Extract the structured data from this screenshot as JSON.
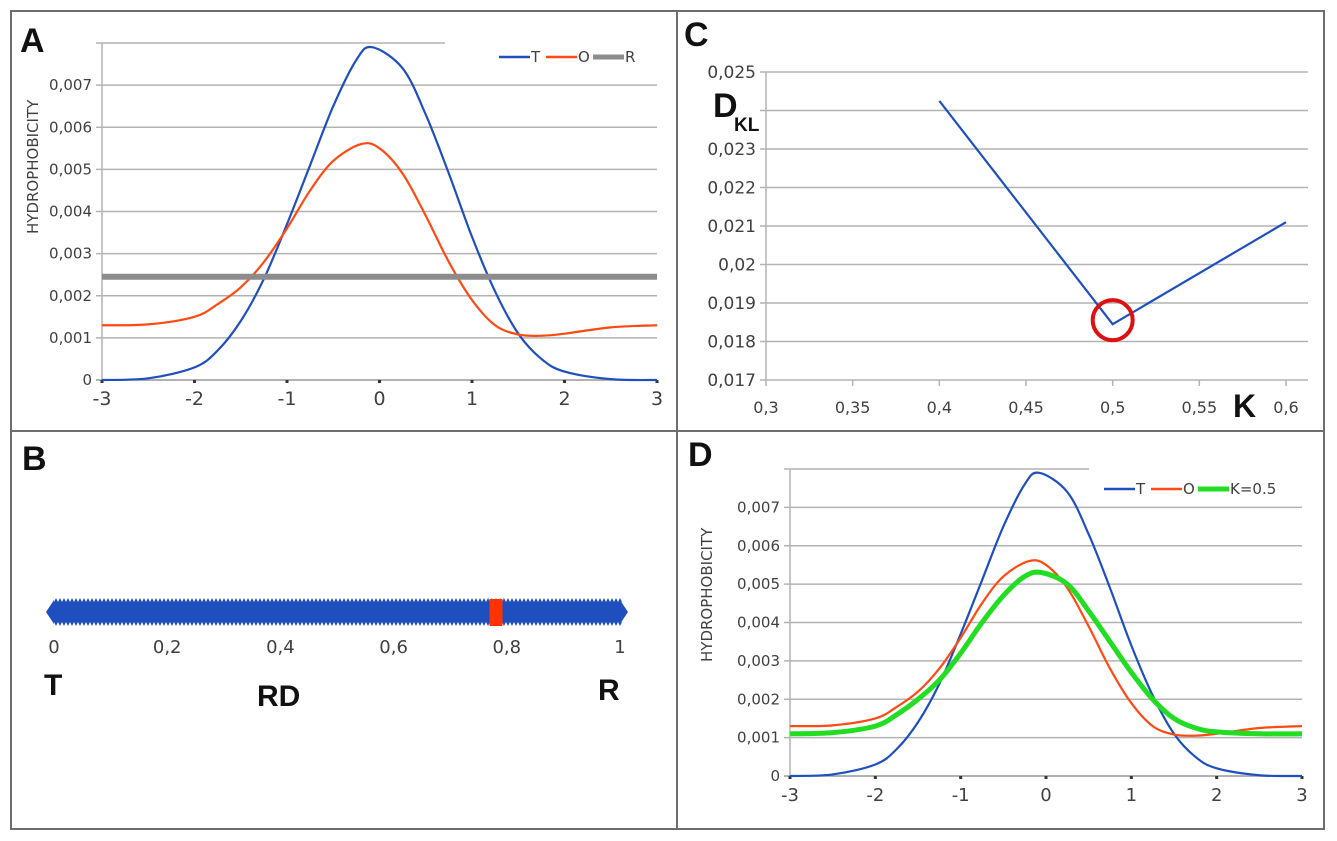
{
  "figure": {
    "panels": [
      "A",
      "B",
      "C",
      "D"
    ]
  },
  "colors": {
    "T": "#1f4fbf",
    "O": "#ff4a12",
    "R": "#8c8c8c",
    "K": "#22dd22",
    "marker": "#ff3300",
    "circle": "#dd1111",
    "grid": "#b3b3b3",
    "axis": "#999999"
  },
  "chart_data": [
    {
      "panel": "A",
      "type": "line",
      "title": "",
      "xlabel": "",
      "ylabel": "HYDROPHOBICITY",
      "xlim": [
        -3,
        3
      ],
      "ylim": [
        0,
        0.008
      ],
      "x_ticks": [
        "-3",
        "-2",
        "-1",
        "0",
        "1",
        "2",
        "3"
      ],
      "y_ticks": [
        "0",
        "0,001",
        "0,002",
        "0,003",
        "0,004",
        "0,005",
        "0,006",
        "0,007"
      ],
      "grid": true,
      "legend": "top-right",
      "series": [
        {
          "name": "T",
          "x": [
            -3,
            -2.5,
            -2,
            -1.75,
            -1.5,
            -1.25,
            -1,
            -0.75,
            -0.5,
            -0.25,
            -0.08,
            0.25,
            0.5,
            0.75,
            1,
            1.25,
            1.5,
            1.75,
            2,
            2.5,
            3
          ],
          "values": [
            0,
            4e-05,
            0.0003,
            0.0007,
            0.0014,
            0.0024,
            0.0037,
            0.0051,
            0.0065,
            0.0076,
            0.0079,
            0.0074,
            0.0063,
            0.0049,
            0.0034,
            0.0021,
            0.0011,
            0.0005,
            0.0002,
            2e-05,
            0
          ]
        },
        {
          "name": "O",
          "x": [
            -3,
            -2.5,
            -2,
            -1.75,
            -1.5,
            -1.25,
            -1,
            -0.75,
            -0.5,
            -0.2,
            0,
            0.25,
            0.5,
            0.75,
            1,
            1.25,
            1.5,
            1.75,
            2,
            2.5,
            3
          ],
          "values": [
            0.0013,
            0.00132,
            0.0015,
            0.0018,
            0.0022,
            0.0028,
            0.0036,
            0.0045,
            0.0052,
            0.0056,
            0.0055,
            0.0049,
            0.0039,
            0.0028,
            0.0019,
            0.0013,
            0.00108,
            0.00105,
            0.0011,
            0.00125,
            0.0013
          ]
        },
        {
          "name": "R",
          "x": [
            -3,
            3
          ],
          "values": [
            0.00245,
            0.00245
          ]
        }
      ]
    },
    {
      "panel": "B",
      "type": "scatter",
      "title": "",
      "xlabel": "RD",
      "xlim": [
        0,
        1
      ],
      "x_ticks": [
        "0",
        "0,2",
        "0,4",
        "0,6",
        "0,8",
        "1"
      ],
      "endpoint_labels": {
        "left": "T",
        "right": "R"
      },
      "marker_value": 0.78
    },
    {
      "panel": "C",
      "type": "line",
      "title": "",
      "xlabel": "K",
      "ylabel": "D",
      "ylabel_subscript": "KL",
      "xlim": [
        0.3,
        0.6
      ],
      "ylim": [
        0.017,
        0.025
      ],
      "x_ticks": [
        "0,3",
        "0,35",
        "0,4",
        "0,45",
        "0,5",
        "0,55",
        "0,6"
      ],
      "y_ticks": [
        "0,017",
        "0,018",
        "0,019",
        "0,02",
        "0,021",
        "0,022",
        "0,023",
        "",
        "0,025"
      ],
      "grid": true,
      "series": [
        {
          "name": "DKL",
          "x": [
            0.4,
            0.5,
            0.6
          ],
          "values": [
            0.02425,
            0.01845,
            0.0211
          ]
        }
      ],
      "annotation": {
        "type": "circle",
        "x": 0.5,
        "y": 0.01845
      }
    },
    {
      "panel": "D",
      "type": "line",
      "title": "",
      "xlabel": "",
      "ylabel": "HYDROPHOBICITY",
      "xlim": [
        -3,
        3
      ],
      "ylim": [
        0,
        0.008
      ],
      "x_ticks": [
        "-3",
        "-2",
        "-1",
        "0",
        "1",
        "2",
        "3"
      ],
      "y_ticks": [
        "0",
        "0,001",
        "0,002",
        "0,003",
        "0,004",
        "0,005",
        "0,006",
        "0,007"
      ],
      "grid": true,
      "legend": "top-right",
      "series": [
        {
          "name": "T",
          "x": [
            -3,
            -2.5,
            -2,
            -1.75,
            -1.5,
            -1.25,
            -1,
            -0.75,
            -0.5,
            -0.25,
            -0.08,
            0.25,
            0.5,
            0.75,
            1,
            1.25,
            1.5,
            1.75,
            2,
            2.5,
            3
          ],
          "values": [
            0,
            4e-05,
            0.0003,
            0.0007,
            0.0014,
            0.0024,
            0.0037,
            0.0051,
            0.0065,
            0.0076,
            0.0079,
            0.0074,
            0.0063,
            0.0049,
            0.0034,
            0.0021,
            0.0011,
            0.0005,
            0.0002,
            2e-05,
            0
          ]
        },
        {
          "name": "O",
          "x": [
            -3,
            -2.5,
            -2,
            -1.75,
            -1.5,
            -1.25,
            -1,
            -0.75,
            -0.5,
            -0.2,
            0,
            0.25,
            0.5,
            0.75,
            1,
            1.25,
            1.5,
            1.75,
            2,
            2.5,
            3
          ],
          "values": [
            0.0013,
            0.00132,
            0.0015,
            0.0018,
            0.0022,
            0.0028,
            0.0036,
            0.0045,
            0.0052,
            0.0056,
            0.0055,
            0.0049,
            0.0039,
            0.0028,
            0.0019,
            0.0013,
            0.00108,
            0.00105,
            0.0011,
            0.00125,
            0.0013
          ]
        },
        {
          "name": "K=0.5",
          "x": [
            -3,
            -2.5,
            -2,
            -1.75,
            -1.5,
            -1.25,
            -1,
            -0.75,
            -0.5,
            -0.25,
            -0.05,
            0.25,
            0.5,
            0.75,
            1,
            1.25,
            1.5,
            1.75,
            2,
            2.5,
            3
          ],
          "values": [
            0.0011,
            0.00113,
            0.0013,
            0.0016,
            0.002,
            0.0025,
            0.0032,
            0.004,
            0.0047,
            0.0052,
            0.0053,
            0.005,
            0.0043,
            0.0035,
            0.0027,
            0.002,
            0.0015,
            0.00125,
            0.00115,
            0.0011,
            0.0011
          ]
        }
      ]
    }
  ]
}
